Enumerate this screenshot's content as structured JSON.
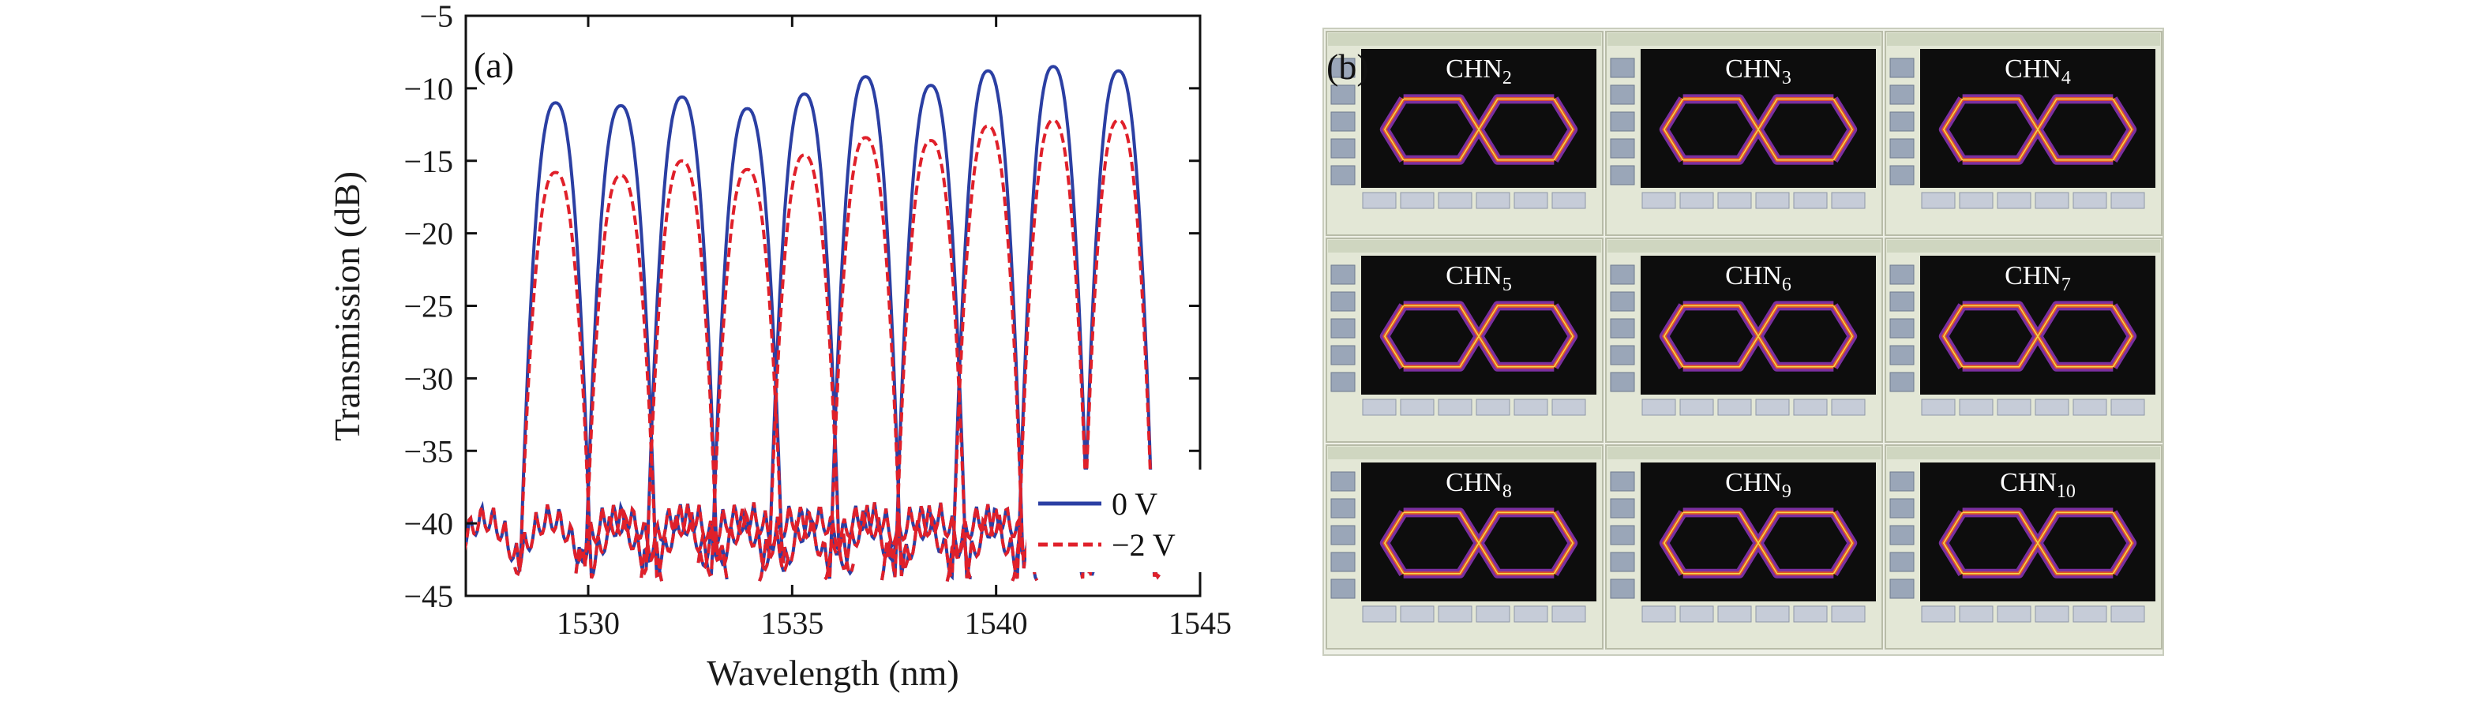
{
  "chart_data": [
    {
      "type": "line",
      "panel_label": "(a)",
      "xlabel": "Wavelength (nm)",
      "ylabel": "Transmission (dB)",
      "xlim": [
        1527,
        1545
      ],
      "ylim": [
        -45,
        -5
      ],
      "xticks": [
        1530,
        1535,
        1540,
        1545
      ],
      "yticks": [
        -5,
        -10,
        -15,
        -20,
        -25,
        -30,
        -35,
        -40,
        -45
      ],
      "tick_labels_x": [
        "1530",
        "1535",
        "1540",
        "1545"
      ],
      "tick_labels_y": [
        "−5",
        "−10",
        "−15",
        "−20",
        "−25",
        "−30",
        "−35",
        "−40",
        "−45"
      ],
      "grid": false,
      "legend_position": "bottom-right",
      "series": [
        {
          "name": "0 V",
          "color": "#2b3fa3",
          "style": "solid",
          "peaks_nm": [
            1529.2,
            1530.8,
            1532.3,
            1533.9,
            1535.3,
            1536.8,
            1538.4,
            1539.8,
            1541.4,
            1543.0
          ],
          "peaks_db": [
            -11.0,
            -11.2,
            -10.6,
            -11.4,
            -10.4,
            -9.2,
            -9.8,
            -8.8,
            -8.5,
            -8.8
          ]
        },
        {
          "name": "−2 V",
          "color": "#e0202a",
          "style": "dashed",
          "peaks_nm": [
            1529.2,
            1530.8,
            1532.3,
            1533.9,
            1535.3,
            1536.8,
            1538.4,
            1539.8,
            1541.4,
            1543.0
          ],
          "peaks_db": [
            -15.8,
            -16.0,
            -15.0,
            -15.6,
            -14.6,
            -13.4,
            -13.6,
            -12.6,
            -12.2,
            -12.2
          ]
        }
      ]
    },
    {
      "type": "image-grid",
      "panel_label": "(b)",
      "rows": 3,
      "cols": 3,
      "tiles": [
        {
          "base": "CHN",
          "sub": "2"
        },
        {
          "base": "CHN",
          "sub": "3"
        },
        {
          "base": "CHN",
          "sub": "4"
        },
        {
          "base": "CHN",
          "sub": "5"
        },
        {
          "base": "CHN",
          "sub": "6"
        },
        {
          "base": "CHN",
          "sub": "7"
        },
        {
          "base": "CHN",
          "sub": "8"
        },
        {
          "base": "CHN",
          "sub": "9"
        },
        {
          "base": "CHN",
          "sub": "10"
        }
      ]
    }
  ]
}
